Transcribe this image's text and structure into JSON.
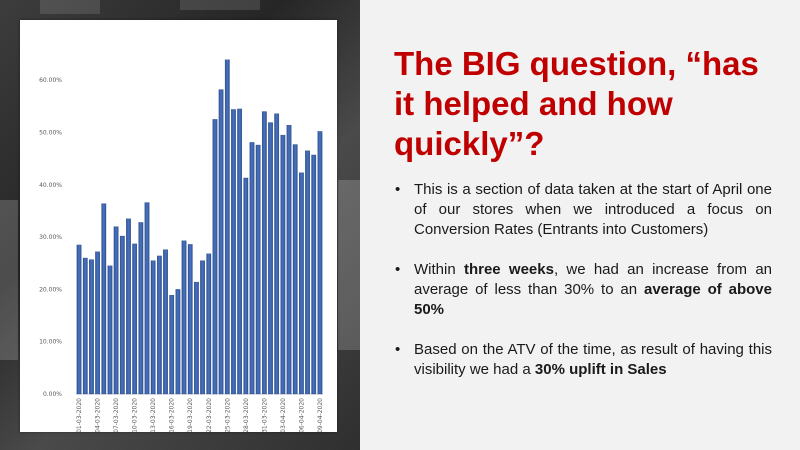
{
  "slide": {
    "title": "The BIG question, “has it helped and how quickly”?",
    "bullets": [
      {
        "segments": [
          {
            "text": "This is a section of data taken at the start of April one of our stores when we introduced a focus on Conversion Rates (Entrants into Customers)",
            "bold": false
          }
        ]
      },
      {
        "segments": [
          {
            "text": "Within ",
            "bold": false
          },
          {
            "text": "three weeks",
            "bold": true
          },
          {
            "text": ", we had an increase from an average of less than 30% to an ",
            "bold": false
          },
          {
            "text": "average of above 50%",
            "bold": true
          }
        ]
      },
      {
        "segments": [
          {
            "text": "Based on the ATV of the time, as result of having this visibility we had a ",
            "bold": false
          },
          {
            "text": "30% uplift in Sales",
            "bold": true
          }
        ]
      }
    ],
    "bullet_glyph": "•",
    "colors": {
      "title": "#c00000",
      "bar": "#2f5597",
      "bar_light": "#4a72c0"
    }
  },
  "chart_data": {
    "type": "bar",
    "title": "",
    "xlabel": "",
    "ylabel": "",
    "ylim": [
      0,
      65
    ],
    "y_ticks": [
      "0.00%",
      "10.00%",
      "20.00%",
      "30.00%",
      "40.00%",
      "50.00%",
      "60.00%"
    ],
    "y_tick_values": [
      0,
      10,
      20,
      30,
      40,
      50,
      60
    ],
    "categories": [
      "01-03-2020",
      "02-03-2020",
      "03-03-2020",
      "04-03-2020",
      "05-03-2020",
      "06-03-2020",
      "07-03-2020",
      "08-03-2020",
      "09-03-2020",
      "10-03-2020",
      "11-03-2020",
      "12-03-2020",
      "13-03-2020",
      "14-03-2020",
      "15-03-2020",
      "16-03-2020",
      "17-03-2020",
      "18-03-2020",
      "19-03-2020",
      "20-03-2020",
      "21-03-2020",
      "22-03-2020",
      "23-03-2020",
      "24-03-2020",
      "25-03-2020",
      "26-03-2020",
      "27-03-2020",
      "28-03-2020",
      "29-03-2020",
      "30-03-2020",
      "31-03-2020",
      "01-04-2020",
      "02-04-2020",
      "03-04-2020",
      "04-04-2020",
      "05-04-2020",
      "06-04-2020",
      "07-04-2020",
      "08-04-2020",
      "09-04-2020"
    ],
    "x_tick_labels": [
      "01-03-2020",
      "04-03-2020",
      "07-03-2020",
      "10-03-2020",
      "13-03-2020",
      "16-03-2020",
      "19-03-2020",
      "22-03-2020",
      "25-03-2020",
      "28-03-2020",
      "31-03-2020",
      "03-04-2020",
      "06-04-2020",
      "09-04-2020"
    ],
    "series": [
      {
        "values": [
          28.5,
          26.0,
          25.7,
          27.2,
          36.4,
          24.5,
          32.0,
          30.2,
          33.5,
          28.7,
          32.8,
          36.6,
          25.5,
          26.4,
          27.6,
          18.9,
          20.0,
          29.3,
          28.6,
          21.4,
          25.5,
          26.8,
          52.5,
          58.2,
          63.9,
          54.4,
          54.5,
          41.3,
          48.1,
          47.6,
          54.0,
          51.9,
          53.6,
          49.5,
          51.4,
          47.7,
          42.3,
          46.5,
          45.7,
          50.2
        ]
      }
    ],
    "grid": false,
    "legend": "none"
  }
}
